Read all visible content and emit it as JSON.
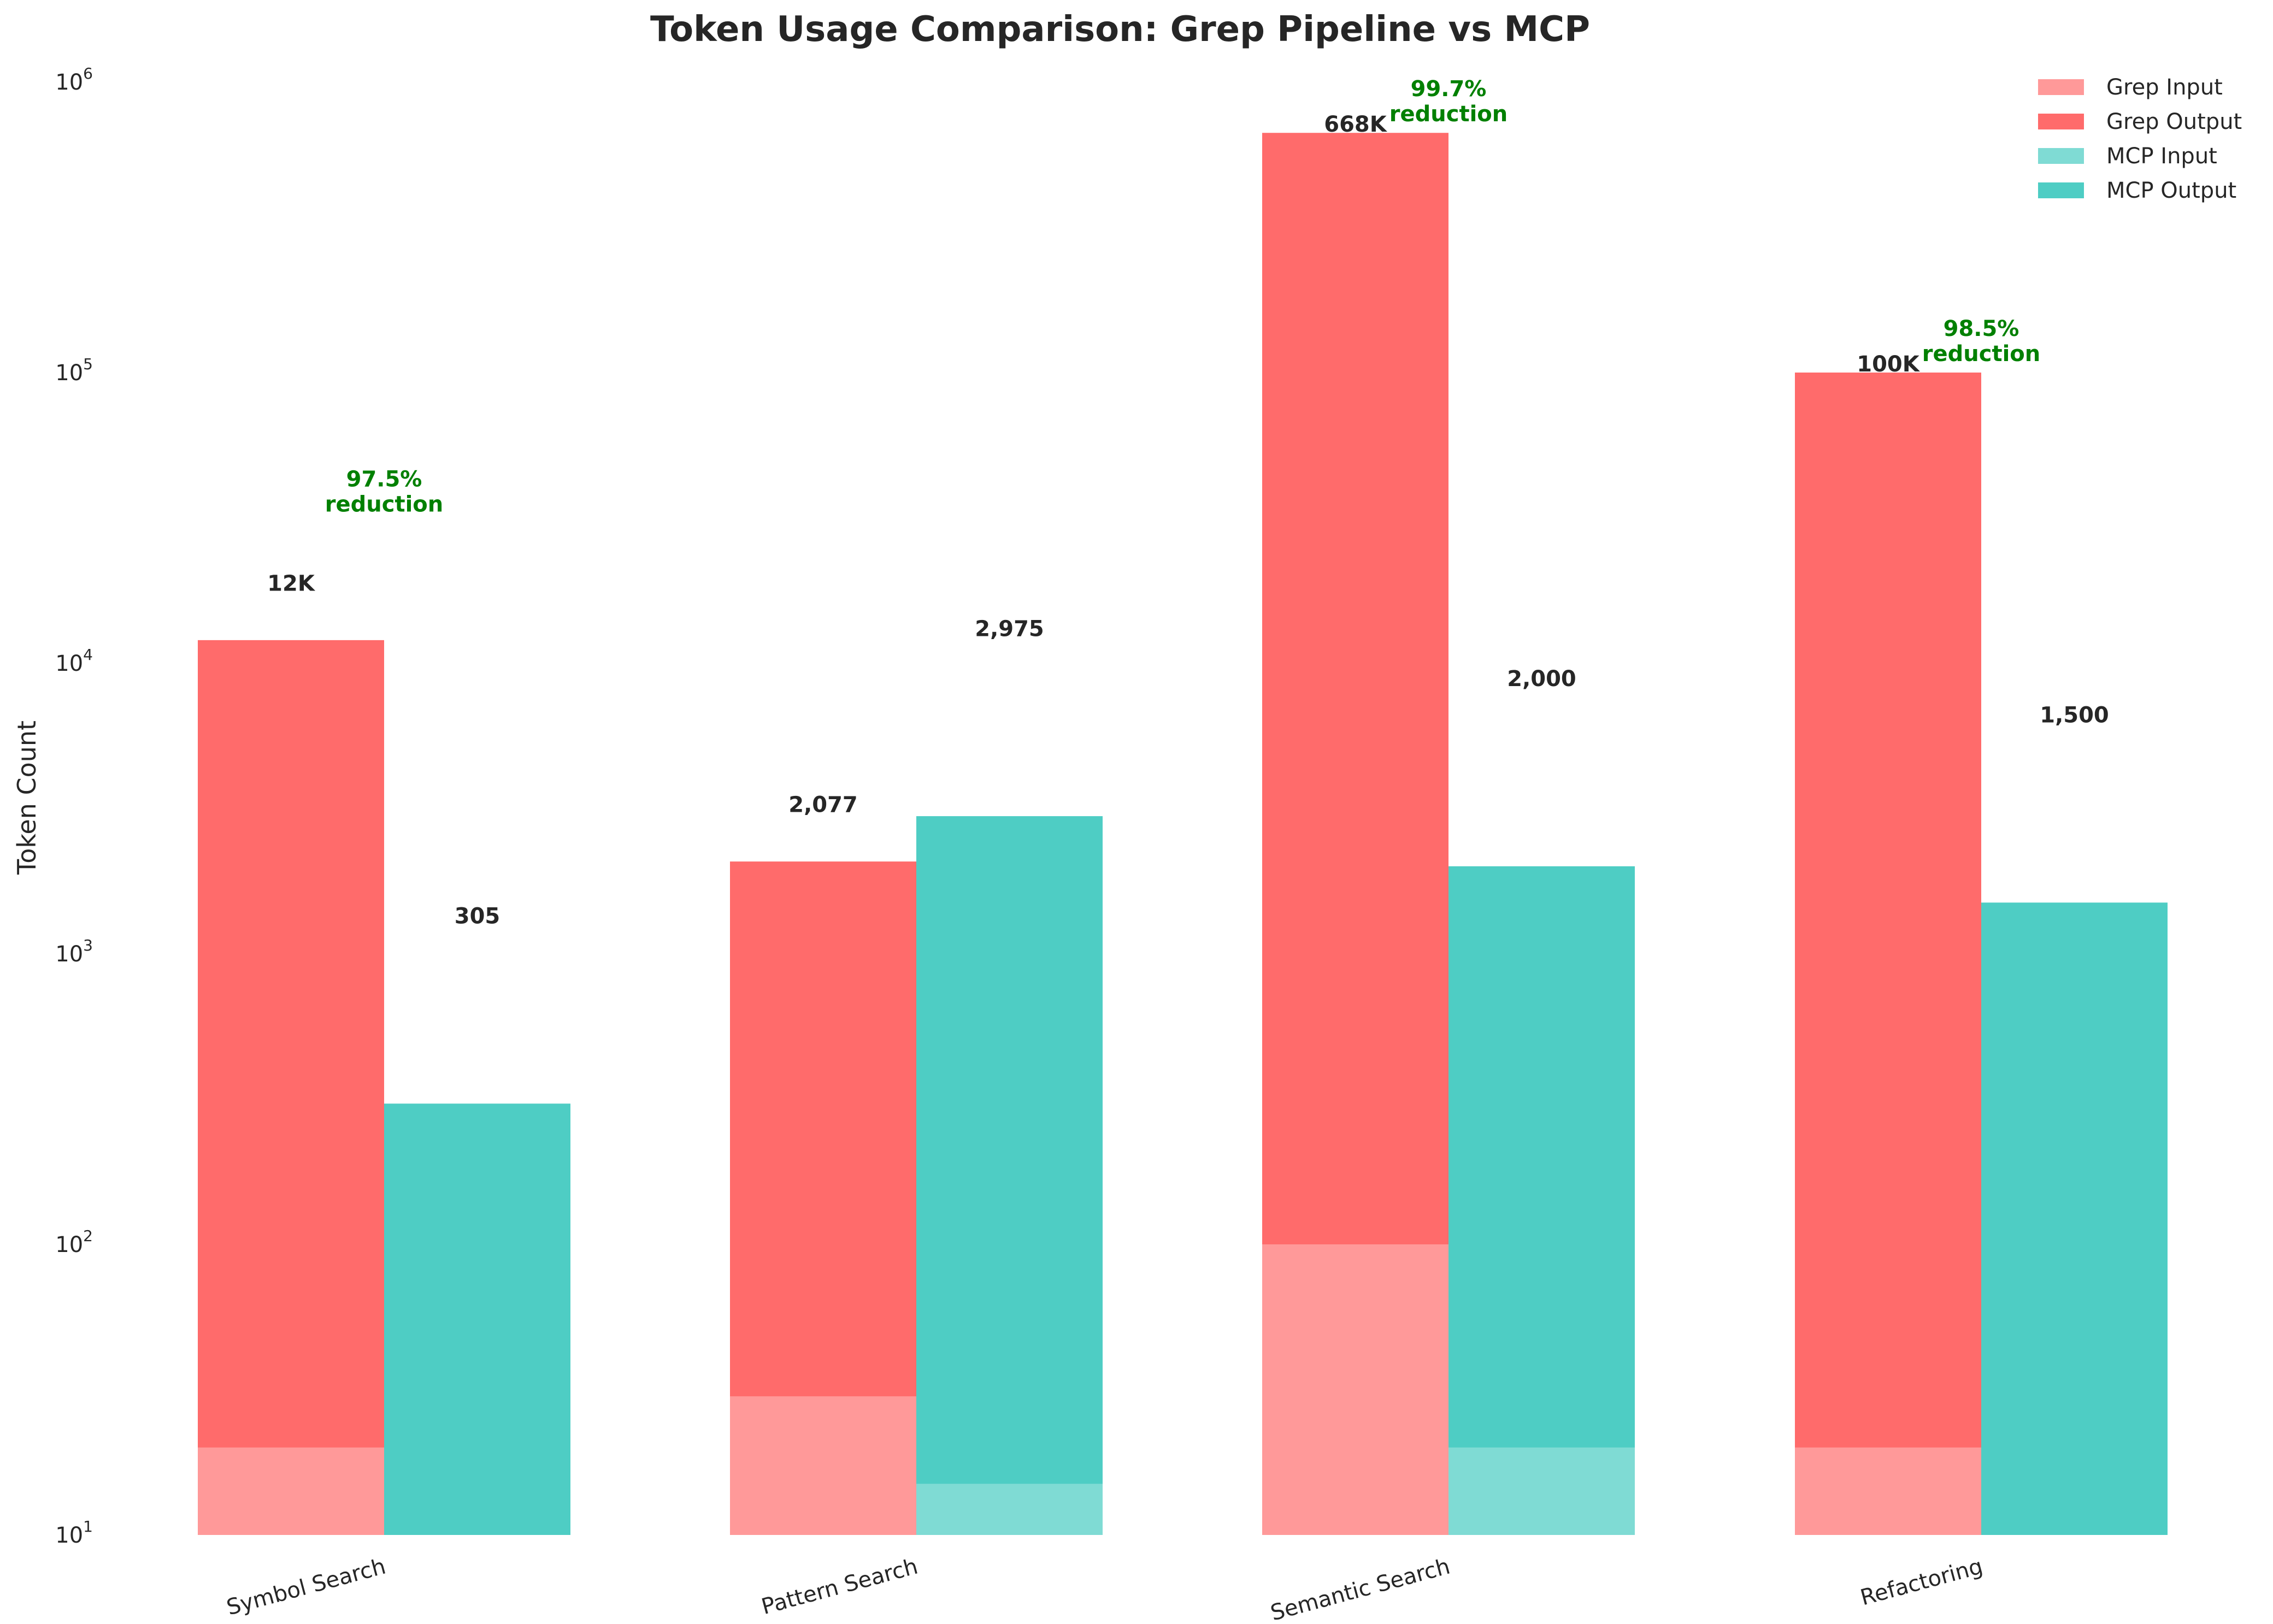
{
  "chart_data": {
    "type": "bar",
    "title": "Token Usage Comparison: Grep Pipeline vs MCP",
    "xlabel": "",
    "ylabel": "Token Count",
    "y_scale": "log",
    "ylim": [
      10,
      1000000
    ],
    "y_ticks": [
      {
        "value": 10,
        "base": "10",
        "exp": "1"
      },
      {
        "value": 100,
        "base": "10",
        "exp": "2"
      },
      {
        "value": 1000,
        "base": "10",
        "exp": "3"
      },
      {
        "value": 10000,
        "base": "10",
        "exp": "4"
      },
      {
        "value": 100000,
        "base": "10",
        "exp": "5"
      },
      {
        "value": 1000000,
        "base": "10",
        "exp": "6"
      }
    ],
    "categories": [
      "Symbol Search",
      "Pattern Search",
      "Semantic Search",
      "Refactoring"
    ],
    "series": [
      {
        "name": "Grep Input",
        "color": "#FF9999",
        "values": [
          20,
          30,
          100,
          20
        ]
      },
      {
        "name": "Grep Output",
        "color": "#FF6B6B",
        "values": [
          12000,
          2077,
          668000,
          100000
        ]
      },
      {
        "name": "MCP Input",
        "color": "#7FDBD4",
        "values": [
          10,
          15,
          20,
          10
        ]
      },
      {
        "name": "MCP Output",
        "color": "#4ECDC4",
        "values": [
          305,
          2975,
          2000,
          1500
        ]
      }
    ],
    "total_labels": {
      "grep": [
        "12K",
        "2,077",
        "668K",
        "100K"
      ],
      "mcp": [
        "305",
        "2,975",
        "2,000",
        "1,500"
      ]
    },
    "reduction_labels": [
      "97.5%\nreduction",
      "",
      "99.7%\nreduction",
      "98.5%\nreduction"
    ],
    "reduction_color": "#008000",
    "legend_position": "top-right",
    "grid": false
  }
}
